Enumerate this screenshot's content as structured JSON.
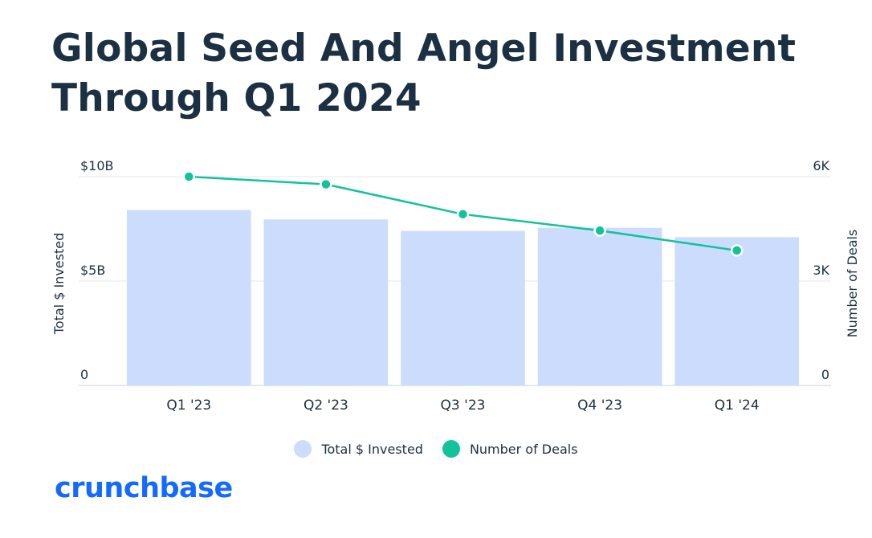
{
  "title": "Global Seed And Angel Investment Through Q1 2024",
  "chart_data": {
    "type": "bar",
    "categories": [
      "Q1 '23",
      "Q2 '23",
      "Q3 '23",
      "Q4 '23",
      "Q1 '24"
    ],
    "series": [
      {
        "name": "Total $ Invested",
        "type": "bar",
        "axis": "left",
        "unit": "$B",
        "values": [
          8.4,
          7.95,
          7.4,
          7.55,
          7.1
        ],
        "color": "#cbdcfc"
      },
      {
        "name": "Number of Deals",
        "type": "line",
        "axis": "right",
        "values": [
          6000,
          5780,
          4920,
          4450,
          3880
        ],
        "color": "#12c39a"
      }
    ],
    "left_axis": {
      "label": "Total $ Invested",
      "ticks": [
        {
          "value": 0,
          "label": "0"
        },
        {
          "value": 5,
          "label": "$5B"
        },
        {
          "value": 10,
          "label": "$10B"
        }
      ],
      "range": [
        0,
        10
      ]
    },
    "right_axis": {
      "label": "Number of Deals",
      "ticks": [
        {
          "value": 0,
          "label": "0"
        },
        {
          "value": 3000,
          "label": "3K"
        },
        {
          "value": 6000,
          "label": "6K"
        }
      ],
      "range": [
        0,
        6000
      ]
    },
    "grid": true,
    "legend": "bottom-center"
  },
  "legend": {
    "bar_label": "Total $ Invested",
    "line_label": "Number of Deals",
    "bar_color": "#cbdcfc",
    "line_color": "#12c39a"
  },
  "brand": {
    "logo_text": "crunchbase",
    "color": "#146aff"
  }
}
